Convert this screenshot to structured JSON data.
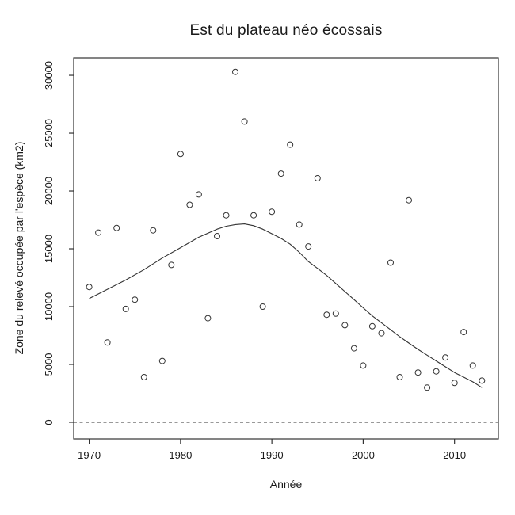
{
  "chart_data": {
    "type": "scatter",
    "title": "Est du plateau néo écossais",
    "xlabel": "Année",
    "ylabel": "Zone du relevé occupée par l'espèce (km2)",
    "xlim": [
      1968.3,
      2014.8
    ],
    "ylim": [
      -1440,
      31510
    ],
    "x_ticks": [
      1970,
      1980,
      1990,
      2000,
      2010
    ],
    "y_ticks": [
      0,
      5000,
      10000,
      15000,
      20000,
      25000,
      30000
    ],
    "grid": false,
    "legend_position": "none",
    "marker": "open-circle",
    "colors": {
      "points": "#333333",
      "curve": "#333333",
      "frame": "#333333",
      "reference_line": "#333333",
      "text": "#1a1a1a",
      "background": "#ffffff"
    },
    "reference_line": {
      "y": 0,
      "style": "dashed"
    },
    "series": [
      {
        "name": "observations",
        "type": "scatter",
        "x": [
          1970,
          1971,
          1972,
          1973,
          1974,
          1975,
          1976,
          1977,
          1978,
          1979,
          1980,
          1981,
          1982,
          1983,
          1984,
          1985,
          1986,
          1987,
          1988,
          1989,
          1990,
          1991,
          1992,
          1993,
          1994,
          1995,
          1996,
          1997,
          1998,
          1999,
          2000,
          2001,
          2002,
          2003,
          2004,
          2005,
          2006,
          2007,
          2008,
          2009,
          2010,
          2011,
          2012,
          2013
        ],
        "y": [
          11700,
          16400,
          6900,
          16800,
          9800,
          10600,
          3900,
          16600,
          5300,
          13600,
          23200,
          18800,
          19700,
          9000,
          16100,
          17900,
          30300,
          26000,
          17900,
          10000,
          18200,
          21500,
          24000,
          17100,
          15200,
          21100,
          9300,
          9400,
          8400,
          6400,
          4900,
          8300,
          7700,
          13800,
          3900,
          19200,
          4300,
          3000,
          4400,
          5600,
          3400,
          7800,
          4900,
          3600
        ]
      },
      {
        "name": "loess-smooth",
        "type": "line",
        "x": [
          1970,
          1972,
          1974,
          1976,
          1978,
          1980,
          1982,
          1984,
          1985,
          1986,
          1987,
          1988,
          1989,
          1990,
          1991,
          1992,
          1993,
          1994,
          1995,
          1996,
          1997,
          1998,
          1999,
          2000,
          2001,
          2002,
          2003,
          2004,
          2005,
          2006,
          2007,
          2008,
          2009,
          2010,
          2011,
          2012,
          2013
        ],
        "y": [
          10700,
          11500,
          12300,
          13200,
          14200,
          15100,
          16000,
          16700,
          16950,
          17100,
          17150,
          17000,
          16700,
          16300,
          15900,
          15400,
          14700,
          13900,
          13300,
          12700,
          12000,
          11300,
          10600,
          9900,
          9200,
          8600,
          8000,
          7400,
          6850,
          6300,
          5800,
          5300,
          4800,
          4300,
          3900,
          3500,
          3000
        ]
      }
    ]
  }
}
